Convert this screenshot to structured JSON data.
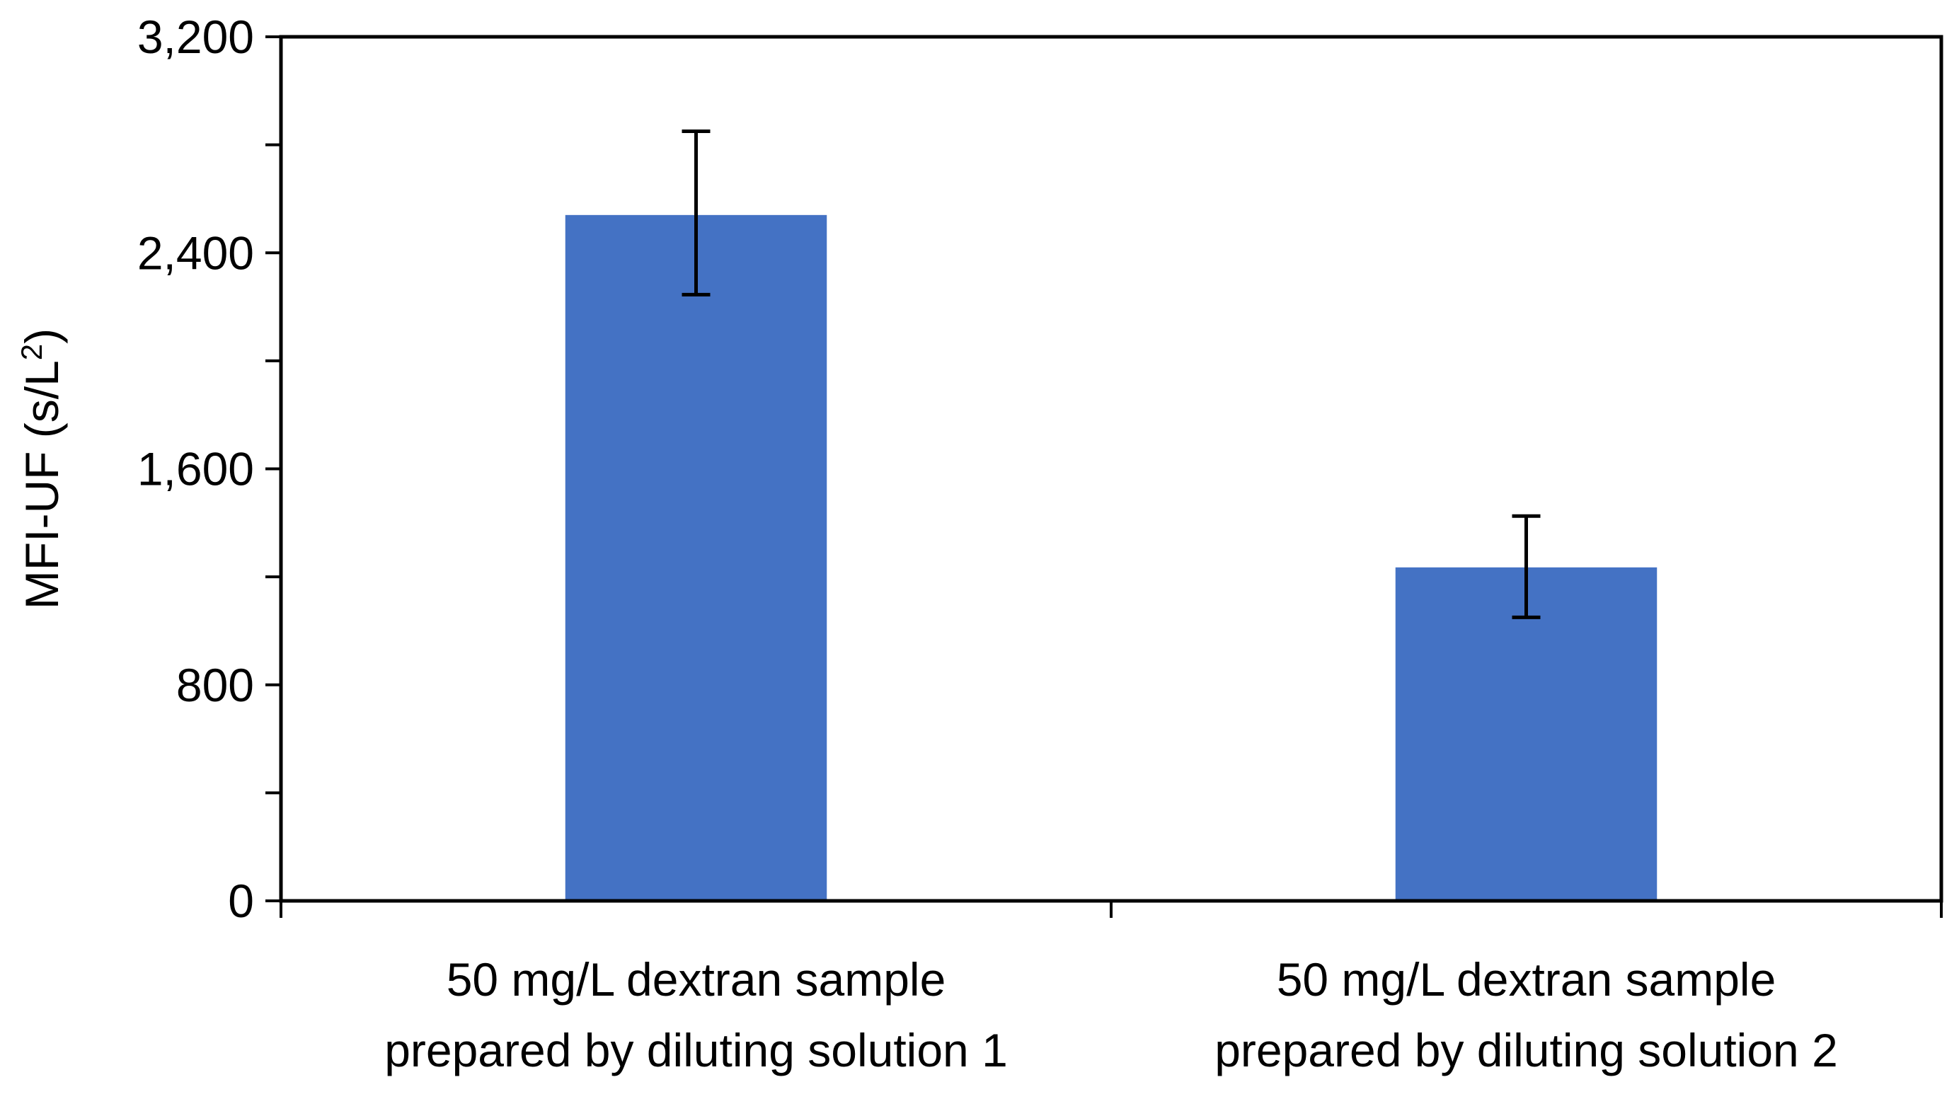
{
  "chart_data": {
    "type": "bar",
    "title": "",
    "xlabel": "",
    "ylabel": "MFI-UF (s/L",
    "ylabel_superscript": "2",
    "ylabel_close": ")",
    "ylim": [
      0,
      3200
    ],
    "ytick_values": [
      0,
      800,
      1600,
      2400,
      3200
    ],
    "ytick_labels": [
      "0",
      "800",
      "1,600",
      "2,400",
      "3,200"
    ],
    "ytick_minor_step": 400,
    "categories": [
      [
        "50 mg/L dextran sample",
        "prepared by diluting solution 1"
      ],
      [
        "50 mg/L dextran sample",
        "prepared by diluting solution 2"
      ]
    ],
    "values": [
      2540,
      1235
    ],
    "error_low": [
      2245,
      1050
    ],
    "error_high": [
      2850,
      1425
    ],
    "bar_color": "#4472C4",
    "axis_color": "#000000",
    "grid": false,
    "legend": "none"
  }
}
